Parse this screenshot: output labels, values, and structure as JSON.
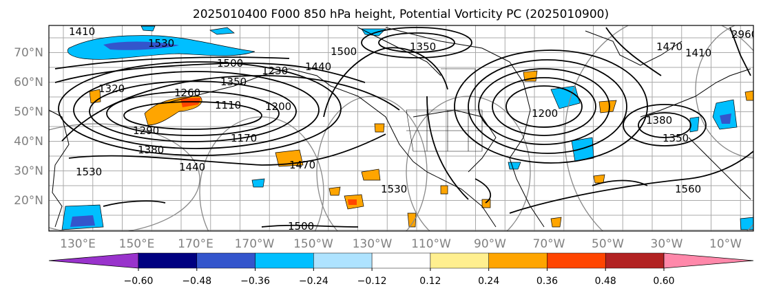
{
  "title": "2025010400 F000 850 hPa height, Potential Vorticity PC (2025010900)",
  "lat_labels": [
    "70°N",
    "60°N",
    "50°N",
    "40°N",
    "30°N",
    "20°N"
  ],
  "lon_labels": [
    "130°E",
    "150°E",
    "170°E",
    "170°W",
    "150°W",
    "130°W",
    "110°W",
    "90°W",
    "70°W",
    "50°W",
    "30°W",
    "10°W"
  ],
  "colorbar": {
    "colors": [
      "#9933cc",
      "#000080",
      "#3355cc",
      "#00bfff",
      "#aee3ff",
      "#ffffff",
      "#ffef8f",
      "#ffa500",
      "#ff4500",
      "#b22222",
      "#ff88aa"
    ],
    "tick_labels": [
      "−0.60",
      "−0.48",
      "−0.36",
      "−0.24",
      "−0.12",
      "0.12",
      "0.24",
      "0.36",
      "0.48",
      "0.60"
    ]
  },
  "contour_labels": [
    "1410",
    "1530",
    "1500",
    "1440",
    "1350",
    "1230",
    "1320",
    "1260",
    "1110",
    "1200",
    "1290",
    "1380",
    "1170",
    "1440",
    "1470",
    "1530",
    "1500",
    "1560",
    "1350",
    "1200",
    "1380",
    "1350",
    "2960",
    "1470",
    "1410",
    "1530",
    "1500"
  ],
  "map": {
    "contour_color": "#000000",
    "grid_color": "#aaaaaa",
    "coast_color": "#000000"
  }
}
